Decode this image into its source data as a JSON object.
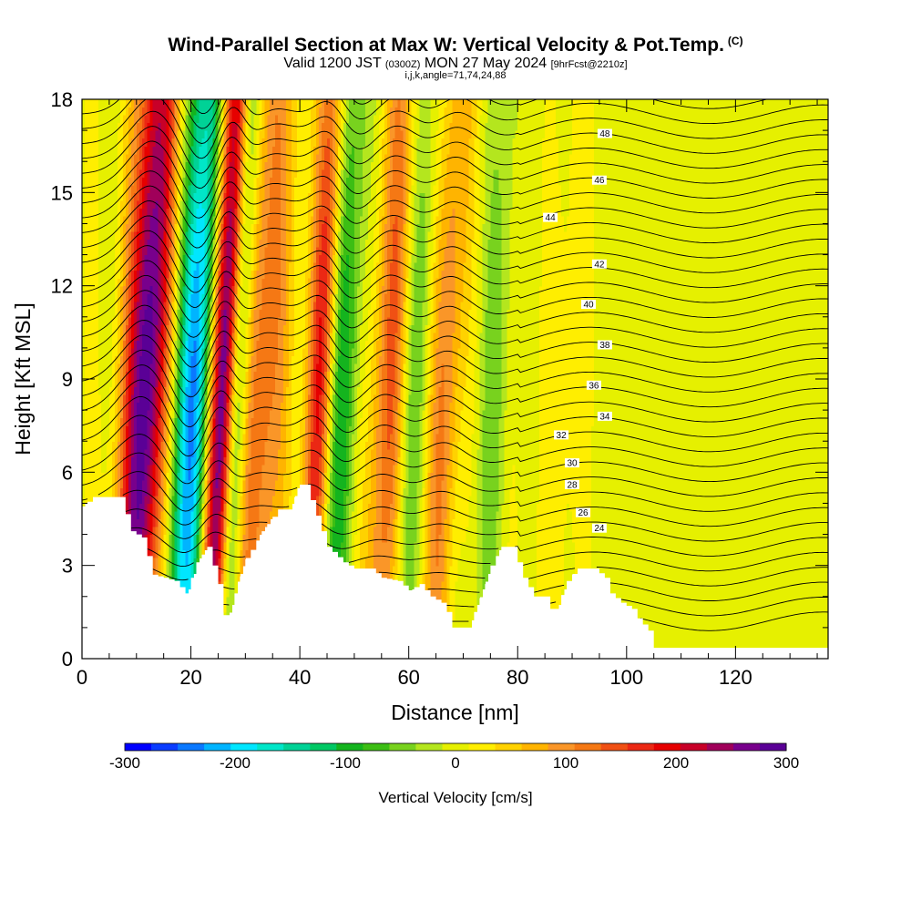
{
  "header": {
    "title": "Wind-Parallel Section at Max W: Vertical Velocity & Pot.Temp.",
    "title_tag": "(C)",
    "sub_a": "Valid 1200 JST",
    "sub_b": "(0300Z)",
    "sub_c": "MON 27 May 2024",
    "sub_d": "[9hrFcst@2210z]",
    "sub2": "i,j,k,angle=71,74,24,88"
  },
  "chart_data": {
    "type": "heatmap",
    "xlabel": "Distance [nm]",
    "ylabel": "Height [Kft MSL]",
    "xlim": [
      0,
      137
    ],
    "ylim": [
      0,
      18
    ],
    "x_ticks": [
      "0",
      "20",
      "40",
      "60",
      "80",
      "100",
      "120"
    ],
    "y_ticks": [
      "0",
      "3",
      "6",
      "9",
      "12",
      "15",
      "18"
    ],
    "colorbar": {
      "label": "Vertical Velocity [cm/s]",
      "range": [
        -300,
        300
      ],
      "ticks": [
        "-300",
        "-200",
        "-100",
        "0",
        "100",
        "200",
        "300"
      ],
      "colors": [
        "#0000ff",
        "#0a3cff",
        "#0a78ff",
        "#00b4ff",
        "#00e6ff",
        "#00e6c8",
        "#00d296",
        "#00c864",
        "#14b41e",
        "#3cbe14",
        "#78d21e",
        "#b4e61e",
        "#e6f000",
        "#ffee00",
        "#ffd200",
        "#ffb400",
        "#fa9628",
        "#f57814",
        "#f05014",
        "#eb2814",
        "#e60000",
        "#c80028",
        "#a0005a",
        "#78008c",
        "#5a0096"
      ]
    },
    "updrafts": [
      {
        "x": 11,
        "w": 4,
        "value": 300
      },
      {
        "x": 25,
        "w": 2.5,
        "value": 300
      },
      {
        "x": 32,
        "w": 5,
        "value": 130
      },
      {
        "x": 43,
        "w": 2.5,
        "value": 180
      },
      {
        "x": 56,
        "w": 3.5,
        "value": 140
      },
      {
        "x": 66,
        "w": 3,
        "value": 110
      },
      {
        "x": 88,
        "w": 5,
        "value": 40
      }
    ],
    "downdrafts": [
      {
        "x": 20,
        "w": 3.5,
        "value": -240
      },
      {
        "x": 28,
        "w": 2,
        "value": -160
      },
      {
        "x": 47,
        "w": 3,
        "value": -110
      },
      {
        "x": 60,
        "w": 3,
        "value": -80
      },
      {
        "x": 75,
        "w": 3,
        "value": -50
      }
    ],
    "terrain": [
      [
        0,
        4.9
      ],
      [
        2,
        5.2
      ],
      [
        7,
        5.2
      ],
      [
        9,
        4.1
      ],
      [
        11,
        3.9
      ],
      [
        13,
        2.7
      ],
      [
        15,
        2.6
      ],
      [
        17,
        2.5
      ],
      [
        19,
        2.1
      ],
      [
        21,
        3.1
      ],
      [
        23,
        3.6
      ],
      [
        25,
        2.4
      ],
      [
        26,
        1.4
      ],
      [
        27,
        1.4
      ],
      [
        28,
        2.1
      ],
      [
        30,
        3.2
      ],
      [
        33,
        4.1
      ],
      [
        36,
        4.8
      ],
      [
        38,
        4.8
      ],
      [
        40,
        5.6
      ],
      [
        41,
        5.6
      ],
      [
        43,
        4.6
      ],
      [
        45,
        3.6
      ],
      [
        48,
        3.1
      ],
      [
        50,
        2.9
      ],
      [
        53,
        2.9
      ],
      [
        55,
        2.6
      ],
      [
        58,
        2.5
      ],
      [
        60,
        2.2
      ],
      [
        62,
        2.4
      ],
      [
        64,
        2.0
      ],
      [
        66,
        1.8
      ],
      [
        67,
        1.5
      ],
      [
        68,
        1.0
      ],
      [
        71,
        1.0
      ],
      [
        72,
        1.5
      ],
      [
        74,
        2.4
      ],
      [
        75,
        3.0
      ],
      [
        77,
        3.6
      ],
      [
        79,
        3.6
      ],
      [
        81,
        2.6
      ],
      [
        83,
        2.0
      ],
      [
        85,
        2.0
      ],
      [
        86,
        1.6
      ],
      [
        87,
        1.6
      ],
      [
        89,
        2.5
      ],
      [
        91,
        2.9
      ],
      [
        94,
        2.9
      ],
      [
        96,
        2.6
      ],
      [
        97,
        2.1
      ],
      [
        99,
        1.8
      ],
      [
        101,
        1.6
      ],
      [
        102,
        1.3
      ],
      [
        104,
        0.9
      ],
      [
        105,
        0.35
      ],
      [
        137,
        0.35
      ]
    ],
    "isentropes": [
      "24",
      "26",
      "28",
      "30",
      "32",
      "34",
      "36",
      "38",
      "40",
      "42",
      "44",
      "46",
      "48"
    ]
  }
}
